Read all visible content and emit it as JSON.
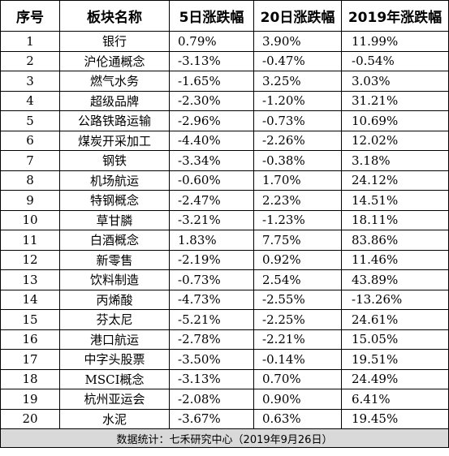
{
  "table": {
    "headers": [
      "序号",
      "板块名称",
      "5日涨跌幅",
      "20日涨跌幅",
      "2019年涨跌幅"
    ],
    "rows": [
      [
        "1",
        "银行",
        "0.79%",
        "3.90%",
        "11.99%"
      ],
      [
        "2",
        "沪伦通概念",
        "-3.13%",
        "-0.47%",
        "-0.54%"
      ],
      [
        "3",
        "燃气水务",
        "-1.65%",
        "3.25%",
        "3.03%"
      ],
      [
        "4",
        "超级品牌",
        "-2.30%",
        "-1.20%",
        "31.21%"
      ],
      [
        "5",
        "公路铁路运输",
        "-2.96%",
        "-0.73%",
        "10.69%"
      ],
      [
        "6",
        "煤炭开采加工",
        "-4.40%",
        "-2.26%",
        "12.02%"
      ],
      [
        "7",
        "钢铁",
        "-3.34%",
        "-0.38%",
        "3.18%"
      ],
      [
        "8",
        "机场航运",
        "-0.60%",
        "1.70%",
        "24.12%"
      ],
      [
        "9",
        "特钢概念",
        "-2.47%",
        "2.23%",
        "14.51%"
      ],
      [
        "10",
        "草甘膦",
        "-3.21%",
        "-1.23%",
        "18.11%"
      ],
      [
        "11",
        "白酒概念",
        "1.83%",
        "7.75%",
        "83.86%"
      ],
      [
        "12",
        "新零售",
        "-2.19%",
        "0.92%",
        "11.46%"
      ],
      [
        "13",
        "饮料制造",
        "-0.73%",
        "2.54%",
        "43.89%"
      ],
      [
        "14",
        "丙烯酸",
        "-4.73%",
        "-2.55%",
        "-13.26%"
      ],
      [
        "15",
        "芬太尼",
        "-5.21%",
        "-2.25%",
        "24.61%"
      ],
      [
        "16",
        "港口航运",
        "-2.78%",
        "-2.21%",
        "15.05%"
      ],
      [
        "17",
        "中字头股票",
        "-3.50%",
        "-0.14%",
        "19.51%"
      ],
      [
        "18",
        "MSCI概念",
        "-3.13%",
        "0.70%",
        "24.49%"
      ],
      [
        "19",
        "杭州亚运会",
        "-2.08%",
        "0.90%",
        "6.41%"
      ],
      [
        "20",
        "水泥",
        "-3.67%",
        "0.63%",
        "19.45%"
      ]
    ],
    "footer": "数据统计：七禾研究中心（2019年9月26日）"
  }
}
